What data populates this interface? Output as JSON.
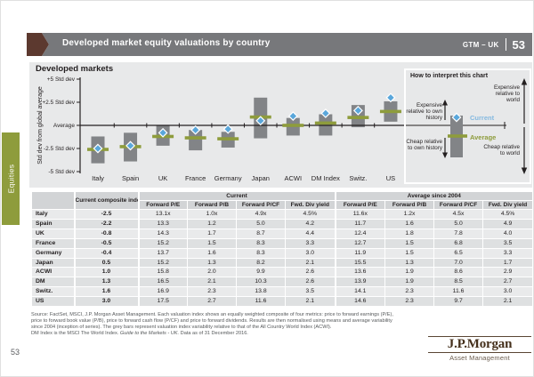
{
  "header": {
    "title": "Developed market equity valuations by country",
    "gtm_label": "GTM – UK",
    "gtm_page": "53"
  },
  "sidebar": {
    "tab_label": "Equities"
  },
  "chart_data": {
    "type": "range-bar",
    "title": "Developed markets",
    "ylabel": "Std dev from global average",
    "ylim": [
      -5,
      5
    ],
    "ytick_values": [
      5,
      2.5,
      0,
      -2.5,
      -5
    ],
    "ytick_labels": [
      "+5 Std dev",
      "+2.5 Std dev",
      "Average",
      "-2.5 Std dev",
      "-5 Std dev"
    ],
    "categories": [
      "Italy",
      "Spain",
      "UK",
      "France",
      "Germany",
      "Japan",
      "ACWI",
      "DM Index",
      "Switz.",
      "US"
    ],
    "series": [
      {
        "name": "Range since 2004 (grey bar)",
        "type": "range",
        "low": [
          -4.1,
          -3.9,
          -2.2,
          -2.7,
          -2.4,
          -1.4,
          -1.1,
          -1.1,
          -0.2,
          0.4
        ],
        "high": [
          -1.2,
          -0.8,
          0.0,
          -0.5,
          -0.7,
          3.0,
          0.8,
          1.2,
          2.2,
          2.6
        ]
      },
      {
        "name": "Average",
        "type": "dash",
        "values": [
          -2.6,
          -2.3,
          -1.2,
          -1.35,
          -1.45,
          0.9,
          0.0,
          0.25,
          0.85,
          1.5
        ]
      },
      {
        "name": "Current",
        "type": "diamond",
        "values": [
          -2.5,
          -2.2,
          -0.8,
          -0.5,
          -0.4,
          0.5,
          1.0,
          1.3,
          1.6,
          3.0
        ]
      }
    ],
    "colors": {
      "bar": "#828487",
      "dash": "#8e9c3c",
      "diamond": "#5aa7db",
      "axis": "#231f20"
    }
  },
  "interpret_box": {
    "title": "How to interpret this chart",
    "current_label": "Current",
    "average_label": "Average",
    "expensive_own": "Expensive relative to own history",
    "cheap_own": "Cheap relative to own history",
    "expensive_world": "Expensive relative to world",
    "cheap_world": "Cheap relative to world"
  },
  "table": {
    "composite_header": "Current composite index",
    "group_headers": [
      {
        "label": "Current",
        "span": 4
      },
      {
        "label": "Average since 2004",
        "span": 4
      }
    ],
    "sub_headers": [
      "Forward P/E",
      "Forward P/B",
      "Forward P/CF",
      "Fwd. Div yield",
      "Forward P/E",
      "Forward P/B",
      "Forward P/CF",
      "Fwd. Div yield"
    ],
    "rows": [
      {
        "country": "Italy",
        "composite": "-2.5",
        "values": [
          "13.1x",
          "1.0x",
          "4.9x",
          "4.5%",
          "11.6x",
          "1.2x",
          "4.5x",
          "4.5%"
        ]
      },
      {
        "country": "Spain",
        "composite": "-2.2",
        "values": [
          "13.3",
          "1.2",
          "5.0",
          "4.2",
          "11.7",
          "1.6",
          "5.0",
          "4.9"
        ]
      },
      {
        "country": "UK",
        "composite": "-0.8",
        "values": [
          "14.3",
          "1.7",
          "8.7",
          "4.4",
          "12.4",
          "1.8",
          "7.8",
          "4.0"
        ]
      },
      {
        "country": "France",
        "composite": "-0.5",
        "values": [
          "15.2",
          "1.5",
          "8.3",
          "3.3",
          "12.7",
          "1.5",
          "6.8",
          "3.5"
        ]
      },
      {
        "country": "Germany",
        "composite": "-0.4",
        "values": [
          "13.7",
          "1.6",
          "8.3",
          "3.0",
          "11.9",
          "1.5",
          "6.5",
          "3.3"
        ]
      },
      {
        "country": "Japan",
        "composite": "0.5",
        "values": [
          "15.2",
          "1.3",
          "8.2",
          "2.1",
          "15.5",
          "1.3",
          "7.0",
          "1.7"
        ]
      },
      {
        "country": "ACWI",
        "composite": "1.0",
        "values": [
          "15.8",
          "2.0",
          "9.9",
          "2.6",
          "13.6",
          "1.9",
          "8.6",
          "2.9"
        ]
      },
      {
        "country": "DM",
        "composite": "1.3",
        "values": [
          "16.5",
          "2.1",
          "10.3",
          "2.6",
          "13.9",
          "1.9",
          "8.5",
          "2.7"
        ]
      },
      {
        "country": "Switz.",
        "composite": "1.6",
        "values": [
          "16.9",
          "2.3",
          "13.8",
          "3.5",
          "14.1",
          "2.3",
          "11.6",
          "3.0"
        ]
      },
      {
        "country": "US",
        "composite": "3.0",
        "values": [
          "17.5",
          "2.7",
          "11.6",
          "2.1",
          "14.6",
          "2.3",
          "9.7",
          "2.1"
        ]
      }
    ]
  },
  "footer": {
    "source_line1": "Source: FactSet, MSCI, J.P. Morgan Asset Management. Each valuation index shows an equally weighted composite of four metrics: price to forward earnings (P/E),",
    "source_line2": "price to forward book value (P/B), price to forward cash flow (P/CF) and price to forward dividends. Results are then normalised using means and average variability",
    "source_line3": "since 2004 (inception of series). The grey bars represent valuation index variability relative to that of the All Country World Index (ACWI).",
    "source_line4_pre": "DM Index is the MSCI The World Index. ",
    "source_line4_italic": "Guide to the Markets - UK.",
    "source_line4_post": " Data as of 31 December 2016.",
    "page_number": "53",
    "logo_line1": "J.P.Morgan",
    "logo_line2": "Asset Management"
  }
}
